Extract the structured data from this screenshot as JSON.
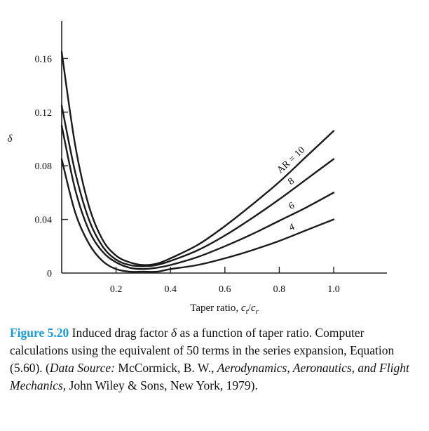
{
  "chart_data": {
    "type": "line",
    "xlabel": "Taper ratio, c_t/c_r",
    "ylabel": "δ",
    "xlim": [
      0,
      1.2
    ],
    "ylim": [
      0,
      0.18
    ],
    "x_ticks": [
      0.2,
      0.4,
      0.6,
      0.8,
      1.0
    ],
    "x_tick_labels": [
      "0.2",
      "0.4",
      "0.6",
      "0.8",
      "1.0"
    ],
    "y_ticks": [
      0,
      0.04,
      0.08,
      0.12,
      0.16
    ],
    "y_tick_labels": [
      "0",
      "0.04",
      "0.08",
      "0.12",
      "0.16"
    ],
    "grid": false,
    "series": [
      {
        "name": "AR = 10",
        "x": [
          0,
          0.05,
          0.1,
          0.15,
          0.2,
          0.25,
          0.3,
          0.35,
          0.4,
          0.5,
          0.6,
          0.7,
          0.8,
          0.9,
          1.0
        ],
        "y": [
          0.165,
          0.095,
          0.05,
          0.025,
          0.013,
          0.008,
          0.006,
          0.007,
          0.011,
          0.021,
          0.035,
          0.051,
          0.068,
          0.087,
          0.106
        ]
      },
      {
        "name": "8",
        "x": [
          0,
          0.05,
          0.1,
          0.15,
          0.2,
          0.25,
          0.3,
          0.35,
          0.4,
          0.5,
          0.6,
          0.7,
          0.8,
          0.9,
          1.0
        ],
        "y": [
          0.125,
          0.075,
          0.04,
          0.02,
          0.01,
          0.006,
          0.005,
          0.006,
          0.009,
          0.017,
          0.028,
          0.041,
          0.055,
          0.07,
          0.085
        ]
      },
      {
        "name": "6",
        "x": [
          0,
          0.05,
          0.1,
          0.15,
          0.2,
          0.25,
          0.3,
          0.35,
          0.4,
          0.5,
          0.6,
          0.7,
          0.8,
          0.9,
          1.0
        ],
        "y": [
          0.11,
          0.062,
          0.032,
          0.016,
          0.008,
          0.004,
          0.003,
          0.004,
          0.006,
          0.012,
          0.02,
          0.029,
          0.039,
          0.049,
          0.06
        ]
      },
      {
        "name": "4",
        "x": [
          0,
          0.05,
          0.1,
          0.15,
          0.2,
          0.25,
          0.3,
          0.35,
          0.4,
          0.5,
          0.6,
          0.7,
          0.8,
          0.9,
          1.0
        ],
        "y": [
          0.085,
          0.045,
          0.022,
          0.009,
          0.003,
          0.001,
          0.001,
          0.001,
          0.003,
          0.006,
          0.011,
          0.017,
          0.024,
          0.032,
          0.04
        ]
      }
    ]
  },
  "caption": {
    "figure_label": "Figure 5.20",
    "text_1": " Induced drag factor ",
    "delta": "δ",
    "text_2": " as a function of taper ratio. Computer calculations using the equivalent of 50 terms in the series expansion, Equation (5.60). (",
    "source_label": "Data Source:",
    "text_3": " McCormick, B. W., ",
    "book_title": "Aerodynamics, Aeronautics, and Flight Mechanics,",
    "text_4": " John Wiley & Sons, New York, 1979)."
  }
}
